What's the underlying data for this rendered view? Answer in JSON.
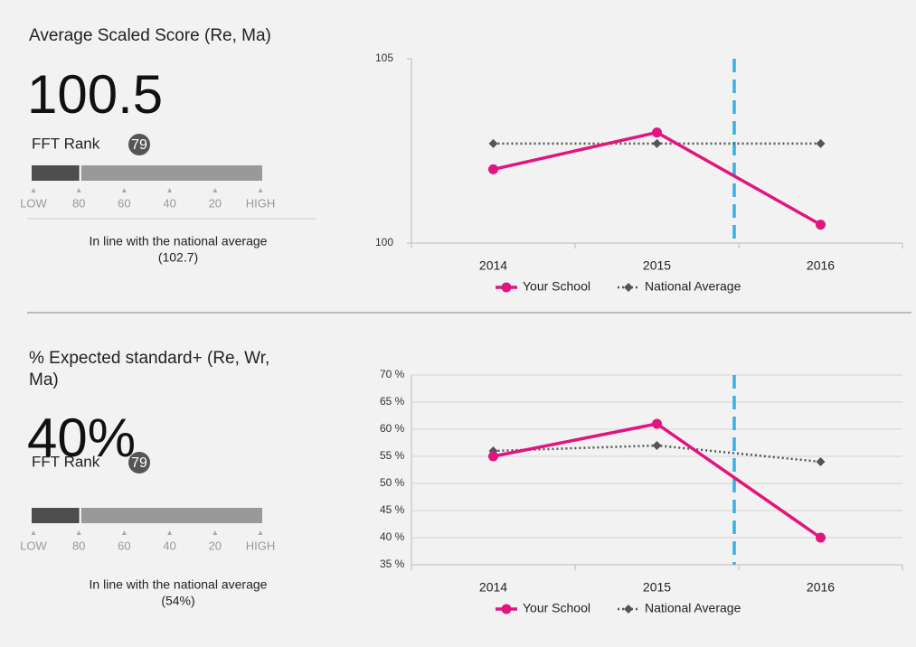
{
  "panels": [
    {
      "title": "Average Scaled Score (Re, Ma)",
      "value": "100.5",
      "rank_label": "FFT Rank",
      "rank": 79,
      "scale": [
        {
          "value": 100,
          "label": "LOW"
        },
        80,
        60,
        40,
        20,
        {
          "value": 0,
          "label": "HIGH"
        }
      ],
      "note": "In line with the national average",
      "note_value": "(102.7)"
    },
    {
      "title": "% Expected standard+ (Re, Wr, Ma)",
      "value": "40%",
      "rank_label": "FFT Rank",
      "rank": 79,
      "scale": [
        {
          "value": 100,
          "label": "LOW"
        },
        80,
        60,
        40,
        20,
        {
          "value": 0,
          "label": "HIGH"
        }
      ],
      "note": "In line with the national average",
      "note_value": "(54%)"
    }
  ],
  "chart_data": [
    {
      "type": "line",
      "categories": [
        "2014",
        "2015",
        "2016"
      ],
      "series": [
        {
          "name": "Your School",
          "color": "#e0157f",
          "line_style": "solid",
          "marker": "circle",
          "values": [
            102.0,
            103.0,
            100.5
          ]
        },
        {
          "name": "National Average",
          "color": "#555555",
          "line_style": "dotted",
          "marker": "diamond",
          "values": [
            102.7,
            102.7,
            102.7
          ]
        }
      ],
      "ylim": [
        100,
        105
      ],
      "yticks": [
        100,
        105
      ],
      "grid": false
    },
    {
      "type": "line",
      "categories": [
        "2014",
        "2015",
        "2016"
      ],
      "series": [
        {
          "name": "Your School",
          "color": "#e0157f",
          "line_style": "solid",
          "marker": "circle",
          "values": [
            55,
            61,
            40
          ]
        },
        {
          "name": "National Average",
          "color": "#555555",
          "line_style": "dotted",
          "marker": "diamond",
          "values": [
            56,
            57,
            54
          ]
        }
      ],
      "ylim": [
        35,
        70
      ],
      "yticks": [
        {
          "value": 35,
          "label": "35 %"
        },
        {
          "value": 40,
          "label": "40 %"
        },
        {
          "value": 45,
          "label": "45 %"
        },
        {
          "value": 50,
          "label": "50 %"
        },
        {
          "value": 55,
          "label": "55 %"
        },
        {
          "value": 60,
          "label": "60 %"
        },
        {
          "value": 65,
          "label": "65 %"
        },
        {
          "value": 70,
          "label": "70 %"
        }
      ],
      "grid": true
    }
  ]
}
